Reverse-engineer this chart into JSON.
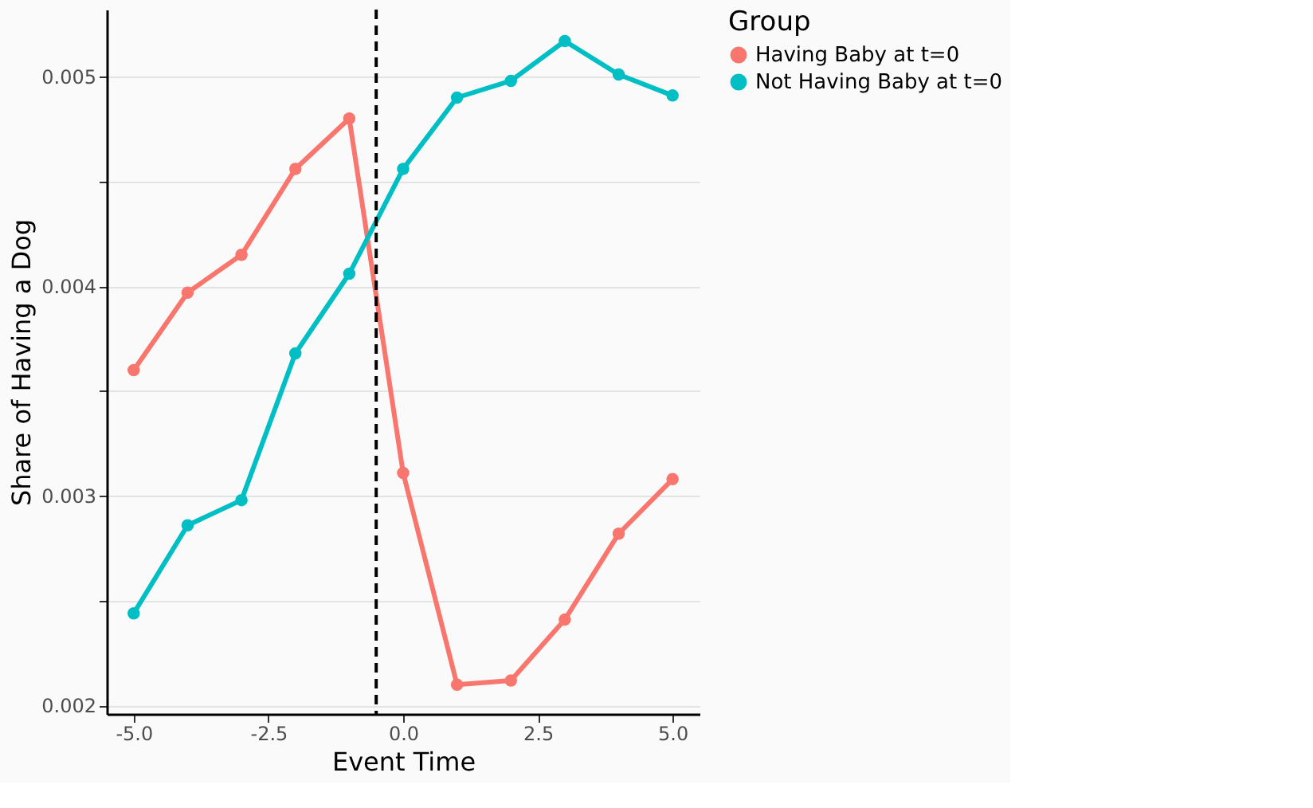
{
  "chart_data": {
    "type": "line",
    "xlabel": "Event Time",
    "ylabel": "Share of Having a Dog",
    "legend_title": "Group",
    "legend": "right",
    "grid": "y",
    "marker": "circle",
    "line_style": "solid",
    "x": [
      -5,
      -4,
      -3,
      -2,
      -1,
      0,
      1,
      2,
      3,
      4,
      5
    ],
    "series": [
      {
        "name": "Having Baby at t=0",
        "color": "#f8766d",
        "values": [
          0.0036,
          0.00397,
          0.00415,
          0.00456,
          0.0048,
          0.00311,
          0.0021,
          0.00212,
          0.00241,
          0.00282,
          0.00308
        ]
      },
      {
        "name": "Not Having Baby at t=0",
        "color": "#00bfc4",
        "values": [
          0.00244,
          0.00286,
          0.00298,
          0.00368,
          0.00406,
          0.00456,
          0.0049,
          0.00498,
          0.00517,
          0.00501,
          0.00491
        ]
      }
    ],
    "xlim": [
      -5.5,
      5.5
    ],
    "xticks": [
      {
        "value": -5,
        "label": "-5.0"
      },
      {
        "value": -2.5,
        "label": "-2.5"
      },
      {
        "value": 0,
        "label": "0.0"
      },
      {
        "value": 2.5,
        "label": "2.5"
      },
      {
        "value": 5,
        "label": "5.0"
      }
    ],
    "ylim": [
      0.00196,
      0.00532
    ],
    "yticks": [
      0.002,
      {
        "value": 0.0025,
        "label": null
      },
      0.003,
      {
        "value": 0.0035,
        "label": null
      },
      0.004,
      {
        "value": 0.0045,
        "label": null
      },
      0.005
    ],
    "ref_lines": [
      {
        "axis": "x",
        "value": -0.5,
        "color": "#000000",
        "line_style": "dashed"
      }
    ]
  }
}
